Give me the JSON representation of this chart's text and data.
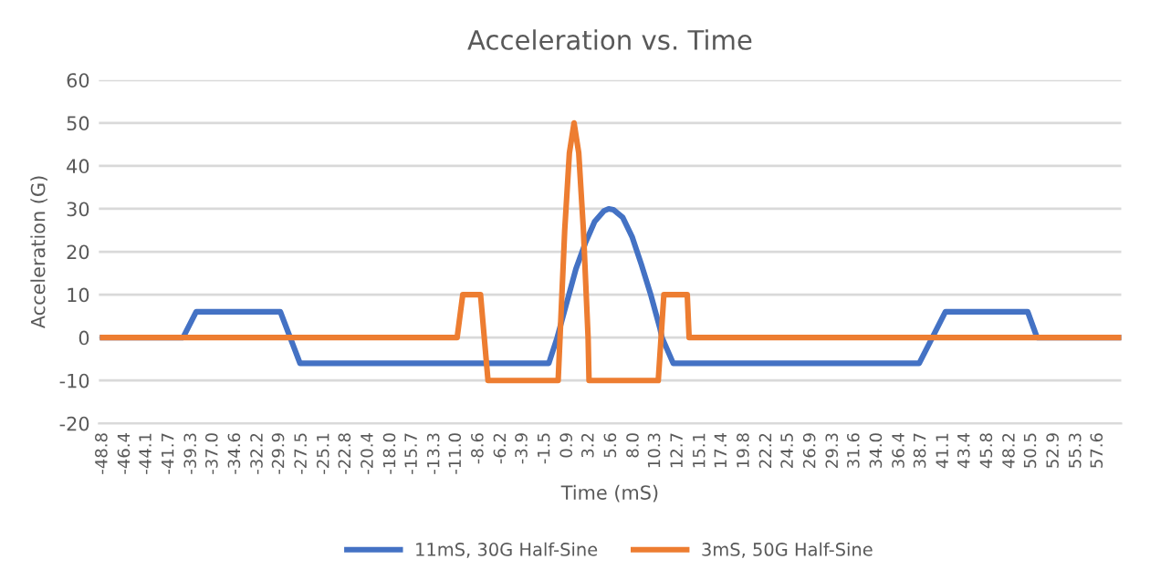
{
  "chart_data": {
    "type": "line",
    "title": "Acceleration vs. Time",
    "xlabel": "Time (mS)",
    "ylabel": "Acceleration (G)",
    "series": [
      {
        "name": "11mS, 30G Half-Sine",
        "color": "#4472c4",
        "x": [
          -48.8,
          -40.2,
          -38.8,
          -29.8,
          -27.7,
          -1.1,
          -0.2,
          0.8,
          1.8,
          2.8,
          3.8,
          4.8,
          5.3,
          5.8,
          6.8,
          7.8,
          8.8,
          9.8,
          10.8,
          11.0,
          12.2,
          38.5,
          41.3,
          50.1,
          51.1,
          60.0
        ],
        "values": [
          0,
          0,
          6,
          6,
          -6,
          -6,
          0,
          8,
          16,
          22,
          27,
          29.5,
          30,
          29.8,
          28,
          23.5,
          17,
          10,
          2,
          0,
          -6,
          -6,
          6,
          6,
          0,
          0
        ]
      },
      {
        "name": "3mS, 50G Half-Sine",
        "color": "#ed7d31",
        "x": [
          -48.8,
          -10.9,
          -10.3,
          -8.4,
          -7.6,
          -0.1,
          0.1,
          0.6,
          1.1,
          1.6,
          2.1,
          2.6,
          3.1,
          3.2,
          10.6,
          11.2,
          13.7,
          13.9,
          60.0
        ],
        "values": [
          0,
          0,
          10,
          10,
          -10,
          -10,
          0,
          25,
          43,
          50,
          43,
          25,
          0,
          -10,
          -10,
          10,
          10,
          0,
          0
        ]
      }
    ],
    "xlim": [
      -49.2,
      60.1
    ],
    "xticks": [
      -48.8,
      -46.4,
      -44.1,
      -41.7,
      -39.3,
      {
        "value": -37,
        "label": "-37.0"
      },
      -34.6,
      -32.2,
      -29.9,
      -27.5,
      -25.1,
      -22.8,
      -20.4,
      {
        "value": -18,
        "label": "-18.0"
      },
      -15.7,
      -13.3,
      {
        "value": -11,
        "label": "-11.0"
      },
      -8.6,
      -6.2,
      -3.9,
      -1.5,
      0.9,
      3.2,
      5.6,
      {
        "value": 8,
        "label": "8.0"
      },
      10.3,
      12.7,
      15.1,
      17.4,
      19.8,
      22.2,
      24.5,
      26.9,
      29.3,
      31.6,
      {
        "value": 34,
        "label": "34.0"
      },
      36.4,
      38.7,
      41.1,
      43.4,
      45.8,
      48.2,
      50.5,
      52.9,
      55.3,
      57.6
    ],
    "ylim": [
      -20,
      60
    ],
    "yticks": [
      -20,
      -10,
      0,
      10,
      20,
      30,
      40,
      50,
      60
    ],
    "grid": "y",
    "legend": "bottom",
    "marker": "none",
    "line_style": "solid"
  }
}
